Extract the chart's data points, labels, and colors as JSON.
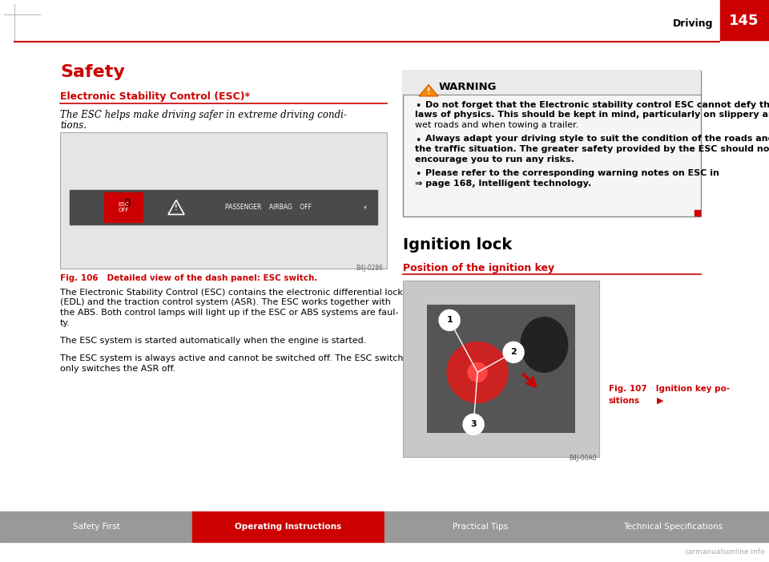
{
  "page_bg": "#ffffff",
  "header_line_color": "#cc0000",
  "header_text": "Driving",
  "header_page": "145",
  "header_red_bg": "#cc0000",
  "left_title": "Safety",
  "left_title_color": "#cc0000",
  "section1_heading": "Electronic Stability Control (ESC)*",
  "section1_heading_color": "#cc0000",
  "section1_italic_line1": "The ESC helps make driving safer in extreme driving condi-",
  "section1_italic_line2": "tions.",
  "fig106_caption": "Fig. 106   Detailed view of the dash panel: ESC switch.",
  "fig106_caption_color": "#cc0000",
  "body_text1_lines": [
    "The Electronic Stability Control (ESC) contains the electronic differential lock",
    "(EDL) and the traction control system (ASR). The ESC works together with",
    "the ABS. Both control lamps will light up if the ESC or ABS systems are faul-",
    "ty."
  ],
  "body_text2": "The ESC system is started automatically when the engine is started.",
  "body_text3_lines": [
    "The ESC system is always active and cannot be switched off. The ESC switch",
    "only switches the ASR off."
  ],
  "warning_title": "WARNING",
  "warning_text1_lines": [
    "Do not forget that the Electronic stability control ESC cannot defy the",
    "laws of physics. This should be kept in mind, particularly on slippery and",
    "wet roads and when towing a trailer."
  ],
  "warning_text2_lines": [
    "Always adapt your driving style to suit the condition of the roads and",
    "the traffic situation. The greater safety provided by the ESC should not",
    "encourage you to run any risks."
  ],
  "warning_text3_lines": [
    "Please refer to the corresponding warning notes on ESC in",
    "⇒ page 168, Intelligent technology."
  ],
  "right_title": "Ignition lock",
  "section2_heading": "Position of the ignition key",
  "section2_heading_color": "#cc0000",
  "fig107_caption_line1": "Fig. 107   Ignition key po-",
  "fig107_caption_line2": "sitions",
  "footer_bg": "#999999",
  "footer_red_bg": "#cc0000",
  "footer_items": [
    "Safety First",
    "Operating Instructions",
    "Practical Tips",
    "Technical Specifications"
  ],
  "footer_active": 1,
  "watermark": "carmanualsonline.info"
}
